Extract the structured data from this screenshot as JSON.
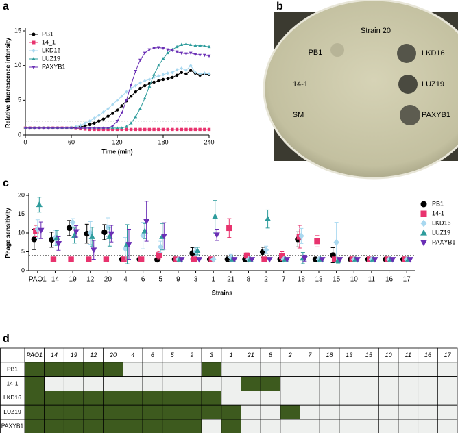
{
  "panel_labels": [
    "a",
    "b",
    "c",
    "d"
  ],
  "chart_data": [
    {
      "type": "line",
      "ylabel": "Relative fluorescence intensity",
      "xlabel": "Time (min)",
      "xlim": [
        0,
        240
      ],
      "xticks": [
        0,
        60,
        120,
        180,
        240
      ],
      "ylim": [
        0,
        15
      ],
      "yticks": [
        0,
        5,
        10,
        15
      ],
      "threshold": 2,
      "legend": "upper left",
      "x": [
        0,
        6,
        12,
        18,
        24,
        30,
        36,
        42,
        48,
        54,
        60,
        66,
        72,
        78,
        84,
        90,
        96,
        102,
        108,
        114,
        120,
        126,
        132,
        138,
        144,
        150,
        156,
        162,
        168,
        174,
        180,
        186,
        192,
        198,
        204,
        210,
        216,
        222,
        228,
        234,
        240
      ],
      "series": [
        {
          "name": "PB1",
          "color": "#000000",
          "marker": "circle",
          "values": [
            1,
            1,
            1,
            1,
            1,
            1,
            1,
            1,
            1,
            1,
            1.05,
            1.1,
            1.2,
            1.3,
            1.5,
            1.7,
            2.0,
            2.3,
            2.7,
            3.1,
            3.6,
            4.2,
            4.9,
            5.6,
            6.2,
            6.7,
            7.1,
            7.4,
            7.6,
            7.8,
            8.0,
            8.1,
            8.3,
            8.6,
            9.0,
            8.8,
            9.3,
            8.9,
            8.6,
            8.8,
            8.7
          ]
        },
        {
          "name": "14_1",
          "color": "#e8336e",
          "marker": "square",
          "values": [
            1,
            1,
            1,
            1,
            1,
            1,
            1,
            1,
            1,
            1,
            1,
            0.95,
            0.9,
            0.85,
            0.8,
            0.8,
            0.8,
            0.8,
            0.8,
            0.8,
            0.8,
            0.8,
            0.8,
            0.8,
            0.8,
            0.8,
            0.8,
            0.8,
            0.8,
            0.8,
            0.8,
            0.8,
            0.8,
            0.8,
            0.8,
            0.8,
            0.8,
            0.8,
            0.8,
            0.8,
            0.8
          ]
        },
        {
          "name": "LKD16",
          "color": "#a8d8f0",
          "marker": "diamond",
          "values": [
            1,
            1,
            1,
            1,
            1,
            1,
            1,
            1,
            1,
            1.05,
            1.1,
            1.2,
            1.4,
            1.7,
            2.0,
            2.4,
            2.8,
            3.3,
            3.8,
            4.4,
            5.0,
            5.6,
            6.2,
            6.7,
            7.1,
            7.5,
            7.8,
            8.0,
            8.3,
            8.5,
            8.7,
            8.9,
            9.0,
            9.4,
            9.6,
            9.3,
            10.0,
            9.0,
            8.8,
            8.9,
            8.8
          ]
        },
        {
          "name": "LUZ19",
          "color": "#2e9c9c",
          "marker": "triangle",
          "values": [
            1,
            1,
            1,
            1,
            1,
            1,
            1,
            1,
            1,
            1,
            1,
            1,
            1,
            1,
            1,
            1,
            1,
            1,
            1,
            1,
            1,
            1,
            1.2,
            1.7,
            2.6,
            3.8,
            5.3,
            7.0,
            8.7,
            10.0,
            11.0,
            11.8,
            12.3,
            12.7,
            13.0,
            13.1,
            13.0,
            12.9,
            12.9,
            12.8,
            12.7
          ]
        },
        {
          "name": "PAXYB1",
          "color": "#6a2fb5",
          "marker": "triangle-down",
          "values": [
            1,
            1,
            1,
            1,
            1,
            1,
            1,
            1,
            1,
            1,
            1,
            1,
            1,
            1,
            1,
            1,
            1,
            1,
            1,
            1.3,
            2.0,
            3.2,
            5.0,
            7.2,
            9.2,
            10.8,
            11.8,
            12.3,
            12.5,
            12.6,
            12.5,
            12.3,
            12.2,
            12.0,
            11.8,
            11.7,
            11.8,
            11.6,
            11.5,
            11.5,
            11.4
          ]
        }
      ]
    },
    {
      "type": "scatter",
      "ylabel": "Phage sensitivity",
      "xlabel": "Strains",
      "ylim": [
        0,
        20
      ],
      "yticks": [
        0,
        5,
        10,
        15,
        20
      ],
      "threshold": 4,
      "legend": "right",
      "categories": [
        "PAO1",
        "14",
        "19",
        "12",
        "20",
        "4",
        "6",
        "5",
        "9",
        "3",
        "1",
        "21",
        "8",
        "2",
        "7",
        "18",
        "13",
        "15",
        "10",
        "11",
        "16",
        "17"
      ],
      "series": [
        {
          "name": "PB1",
          "color": "#000000",
          "marker": "circle",
          "values": [
            8.3,
            8.2,
            11.3,
            9.8,
            10.2,
            3,
            3,
            2.9,
            3,
            4.6,
            3,
            3,
            3,
            4.9,
            3,
            8.3,
            3,
            4.1,
            3,
            3,
            3,
            3
          ],
          "errors": [
            2.7,
            2,
            2,
            2.5,
            2,
            0,
            0,
            0,
            0,
            1.5,
            0,
            0,
            0,
            1.3,
            0,
            2,
            0,
            2,
            0,
            0,
            0,
            0
          ]
        },
        {
          "name": "14-1",
          "color": "#e8336e",
          "marker": "square",
          "values": [
            10.5,
            3,
            3,
            3,
            3,
            3,
            3,
            4.1,
            3,
            3,
            3,
            11.3,
            4,
            3,
            3.8,
            9,
            7.8,
            3,
            3,
            3,
            3,
            3
          ],
          "errors": [
            1.5,
            0,
            0,
            0,
            0,
            0,
            0,
            1,
            0,
            0,
            0,
            2.5,
            0.7,
            0,
            1.2,
            3,
            1.5,
            0,
            0,
            0,
            0,
            0
          ]
        },
        {
          "name": "LKD16",
          "color": "#a8d8f0",
          "marker": "diamond",
          "values": [
            11,
            8.7,
            12.8,
            10,
            11.5,
            5.8,
            9.3,
            6.3,
            3,
            5,
            3,
            3.5,
            3,
            5.5,
            3,
            9.2,
            3,
            7.5,
            3,
            3,
            3,
            3
          ],
          "errors": [
            2.5,
            2,
            1,
            3,
            2.5,
            3,
            3.5,
            1.5,
            0,
            1,
            0,
            0.8,
            0,
            1,
            0,
            2,
            0,
            5.3,
            0,
            0,
            0,
            0
          ]
        },
        {
          "name": "LUZ19",
          "color": "#2e9c9c",
          "marker": "triangle",
          "values": [
            17.5,
            8.7,
            9.3,
            9,
            9,
            7,
            10.5,
            9,
            3,
            5.2,
            14.3,
            3,
            3,
            13.7,
            3,
            3.3,
            3,
            2.7,
            3,
            3,
            3,
            3
          ],
          "errors": [
            2,
            2,
            2,
            2.5,
            2.5,
            5.2,
            2,
            3.5,
            0,
            1,
            4.3,
            0,
            0,
            2.4,
            0,
            1.5,
            0,
            0.7,
            0,
            0,
            0,
            0
          ]
        },
        {
          "name": "PAXYB1",
          "color": "#6a2fb5",
          "marker": "triangle-down",
          "values": [
            10.7,
            7.2,
            10.4,
            5.5,
            9.8,
            7,
            13.1,
            9.2,
            3,
            3,
            9.5,
            3,
            3,
            3,
            3,
            3.3,
            3,
            3,
            3,
            3,
            3,
            3
          ],
          "errors": [
            2.2,
            1.8,
            1.5,
            2.5,
            2.2,
            4,
            5.3,
            3.5,
            0,
            0,
            1.5,
            0,
            0,
            0,
            0,
            0.8,
            0,
            0,
            0,
            0,
            0,
            0
          ]
        }
      ]
    }
  ],
  "photo": {
    "labels": [
      "Strain 20",
      "PB1",
      "LKD16",
      "14-1",
      "LUZ19",
      "SM",
      "PAXYB1"
    ]
  },
  "table": {
    "header": [
      "PAO1",
      "14",
      "19",
      "12",
      "20",
      "4",
      "6",
      "5",
      "9",
      "3",
      "1",
      "21",
      "8",
      "2",
      "7",
      "18",
      "13",
      "15",
      "10",
      "11",
      "16",
      "17"
    ],
    "rows": [
      {
        "label": "PB1",
        "cells": [
          1,
          1,
          1,
          1,
          1,
          0,
          0,
          0,
          0,
          1,
          0,
          0,
          0,
          0,
          0,
          0,
          0,
          0,
          0,
          0,
          0,
          0
        ]
      },
      {
        "label": "14-1",
        "cells": [
          1,
          0,
          0,
          0,
          0,
          0,
          0,
          0,
          0,
          0,
          0,
          1,
          1,
          0,
          0,
          0,
          0,
          0,
          0,
          0,
          0,
          0
        ]
      },
      {
        "label": "LKD16",
        "cells": [
          1,
          1,
          1,
          1,
          1,
          1,
          1,
          1,
          1,
          1,
          0,
          0,
          0,
          0,
          0,
          0,
          0,
          0,
          0,
          0,
          0,
          0
        ]
      },
      {
        "label": "LUZ19",
        "cells": [
          1,
          1,
          1,
          1,
          1,
          1,
          1,
          1,
          1,
          1,
          1,
          0,
          0,
          1,
          0,
          0,
          0,
          0,
          0,
          0,
          0,
          0
        ]
      },
      {
        "label": "PAXYB1",
        "cells": [
          1,
          1,
          1,
          1,
          1,
          1,
          1,
          1,
          1,
          0,
          1,
          0,
          0,
          0,
          0,
          0,
          0,
          0,
          0,
          0,
          0,
          0
        ]
      }
    ]
  }
}
